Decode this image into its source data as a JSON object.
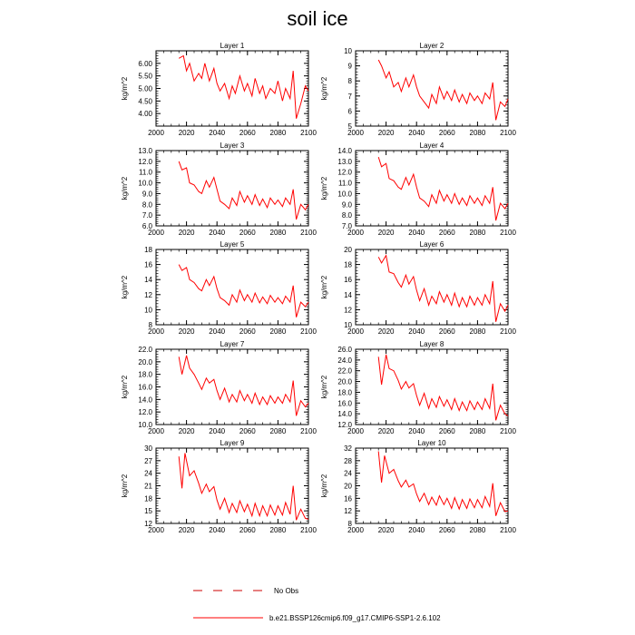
{
  "title": "soil ice",
  "legend": {
    "entries": [
      {
        "label": "No Obs",
        "style": "dashed",
        "color": "#cc0000"
      },
      {
        "label": "b.e21.BSSP126cmip6.f09_g17.CMIP6-SSP1-2.6.102",
        "style": "solid",
        "color": "#ff0000"
      }
    ]
  },
  "chart_data": [
    {
      "type": "line",
      "title": "Layer 1",
      "ylabel": "kg/m^2",
      "xlim": [
        2000,
        2100
      ],
      "ylim": [
        3.5,
        6.5
      ],
      "yticks": [
        "4.00",
        "4.50",
        "5.00",
        "5.50",
        "6.00"
      ],
      "ytick_values": [
        4.0,
        4.5,
        5.0,
        5.5,
        6.0
      ],
      "xticks": [
        "2000",
        "2020",
        "2040",
        "2060",
        "2080",
        "2100"
      ],
      "series": [
        {
          "color": "#ff0000",
          "x": [
            2015,
            2018,
            2020,
            2022,
            2025,
            2028,
            2030,
            2032,
            2035,
            2038,
            2040,
            2042,
            2045,
            2048,
            2050,
            2052,
            2055,
            2058,
            2060,
            2063,
            2065,
            2068,
            2070,
            2072,
            2075,
            2078,
            2080,
            2083,
            2085,
            2088,
            2090,
            2092,
            2095,
            2098,
            2100
          ],
          "y": [
            6.2,
            6.3,
            5.7,
            6.0,
            5.3,
            5.6,
            5.4,
            6.0,
            5.3,
            5.8,
            5.2,
            4.9,
            5.2,
            4.6,
            5.1,
            4.8,
            5.5,
            4.9,
            5.2,
            4.7,
            5.4,
            4.8,
            5.1,
            4.6,
            5.0,
            4.8,
            5.3,
            4.5,
            5.0,
            4.6,
            5.7,
            3.8,
            4.4,
            5.1,
            4.9
          ]
        }
      ]
    },
    {
      "type": "line",
      "title": "Layer 2",
      "ylabel": "kg/m^2",
      "xlim": [
        2000,
        2100
      ],
      "ylim": [
        5,
        10
      ],
      "yticks": [
        "5",
        "6",
        "7",
        "8",
        "9",
        "10"
      ],
      "ytick_values": [
        5,
        6,
        7,
        8,
        9,
        10
      ],
      "xticks": [
        "2000",
        "2020",
        "2040",
        "2060",
        "2080",
        "2100"
      ],
      "series": [
        {
          "color": "#ff0000",
          "x": [
            2015,
            2017,
            2020,
            2022,
            2025,
            2028,
            2030,
            2033,
            2035,
            2038,
            2040,
            2042,
            2045,
            2048,
            2050,
            2053,
            2055,
            2058,
            2060,
            2063,
            2065,
            2068,
            2070,
            2073,
            2075,
            2078,
            2080,
            2083,
            2085,
            2088,
            2090,
            2092,
            2095,
            2098,
            2100
          ],
          "y": [
            9.4,
            9.0,
            8.2,
            8.6,
            7.6,
            7.9,
            7.3,
            8.2,
            7.6,
            8.4,
            7.6,
            7.0,
            6.6,
            6.2,
            7.1,
            6.5,
            7.6,
            6.8,
            7.3,
            6.7,
            7.4,
            6.6,
            7.1,
            6.5,
            7.2,
            6.7,
            7.0,
            6.5,
            7.2,
            6.8,
            7.9,
            5.4,
            6.6,
            6.3,
            6.8
          ]
        }
      ]
    },
    {
      "type": "line",
      "title": "Layer 3",
      "ylabel": "kg/m^2",
      "xlim": [
        2000,
        2100
      ],
      "ylim": [
        6,
        13
      ],
      "yticks": [
        "6.0",
        "7.0",
        "8.0",
        "9.0",
        "10.0",
        "11.0",
        "12.0",
        "13.0"
      ],
      "ytick_values": [
        6,
        7,
        8,
        9,
        10,
        11,
        12,
        13
      ],
      "xticks": [
        "2000",
        "2020",
        "2040",
        "2060",
        "2080",
        "2100"
      ],
      "series": [
        {
          "color": "#ff0000",
          "x": [
            2015,
            2017,
            2020,
            2022,
            2025,
            2028,
            2030,
            2033,
            2035,
            2038,
            2040,
            2042,
            2045,
            2048,
            2050,
            2053,
            2055,
            2058,
            2060,
            2063,
            2065,
            2068,
            2070,
            2073,
            2075,
            2078,
            2080,
            2083,
            2085,
            2088,
            2090,
            2092,
            2095,
            2098,
            2100
          ],
          "y": [
            12.0,
            11.2,
            11.4,
            10.0,
            9.8,
            9.2,
            9.0,
            10.2,
            9.6,
            10.5,
            9.4,
            8.3,
            8.0,
            7.6,
            8.6,
            7.9,
            9.2,
            8.2,
            8.8,
            8.0,
            8.9,
            7.9,
            8.5,
            7.7,
            8.6,
            8.0,
            8.4,
            7.8,
            8.6,
            8.0,
            9.4,
            6.6,
            8.0,
            7.5,
            8.0
          ]
        }
      ]
    },
    {
      "type": "line",
      "title": "Layer 4",
      "ylabel": "kg/m^2",
      "xlim": [
        2000,
        2100
      ],
      "ylim": [
        7,
        14
      ],
      "yticks": [
        "7.0",
        "8.0",
        "9.0",
        "10.0",
        "11.0",
        "12.0",
        "13.0",
        "14.0"
      ],
      "ytick_values": [
        7,
        8,
        9,
        10,
        11,
        12,
        13,
        14
      ],
      "xticks": [
        "2000",
        "2020",
        "2040",
        "2060",
        "2080",
        "2100"
      ],
      "series": [
        {
          "color": "#ff0000",
          "x": [
            2015,
            2017,
            2020,
            2022,
            2025,
            2028,
            2030,
            2033,
            2035,
            2038,
            2040,
            2042,
            2045,
            2048,
            2050,
            2053,
            2055,
            2058,
            2060,
            2063,
            2065,
            2068,
            2070,
            2073,
            2075,
            2078,
            2080,
            2083,
            2085,
            2088,
            2090,
            2092,
            2095,
            2098,
            2100
          ],
          "y": [
            13.4,
            12.5,
            12.8,
            11.4,
            11.2,
            10.6,
            10.4,
            11.5,
            10.8,
            11.8,
            10.6,
            9.6,
            9.3,
            8.8,
            9.9,
            9.1,
            10.3,
            9.3,
            9.9,
            9.1,
            10.0,
            9.0,
            9.6,
            8.9,
            9.8,
            9.1,
            9.6,
            8.9,
            9.8,
            9.1,
            10.6,
            7.5,
            9.1,
            8.6,
            9.1
          ]
        }
      ]
    },
    {
      "type": "line",
      "title": "Layer 5",
      "ylabel": "kg/m^2",
      "xlim": [
        2000,
        2100
      ],
      "ylim": [
        8,
        18
      ],
      "yticks": [
        "8",
        "10",
        "12",
        "14",
        "16",
        "18"
      ],
      "ytick_values": [
        8,
        10,
        12,
        14,
        16,
        18
      ],
      "xticks": [
        "2000",
        "2020",
        "2040",
        "2060",
        "2080",
        "2100"
      ],
      "series": [
        {
          "color": "#ff0000",
          "x": [
            2015,
            2017,
            2020,
            2022,
            2025,
            2028,
            2030,
            2033,
            2035,
            2038,
            2040,
            2042,
            2045,
            2048,
            2050,
            2053,
            2055,
            2058,
            2060,
            2063,
            2065,
            2068,
            2070,
            2073,
            2075,
            2078,
            2080,
            2083,
            2085,
            2088,
            2090,
            2092,
            2095,
            2098,
            2100
          ],
          "y": [
            16.0,
            15.2,
            15.6,
            14.0,
            13.6,
            12.8,
            12.5,
            14.0,
            13.2,
            14.4,
            12.8,
            11.6,
            11.2,
            10.6,
            12.0,
            11.0,
            12.6,
            11.2,
            12.0,
            11.0,
            12.2,
            10.9,
            11.7,
            10.8,
            11.9,
            11.0,
            11.6,
            10.8,
            11.8,
            11.0,
            13.2,
            9.0,
            11.0,
            10.4,
            11.0
          ]
        }
      ]
    },
    {
      "type": "line",
      "title": "Layer 6",
      "ylabel": "kg/m^2",
      "xlim": [
        2000,
        2100
      ],
      "ylim": [
        10,
        20
      ],
      "yticks": [
        "10",
        "12",
        "14",
        "16",
        "18",
        "20"
      ],
      "ytick_values": [
        10,
        12,
        14,
        16,
        18,
        20
      ],
      "xticks": [
        "2000",
        "2020",
        "2040",
        "2060",
        "2080",
        "2100"
      ],
      "series": [
        {
          "color": "#ff0000",
          "x": [
            2015,
            2017,
            2020,
            2022,
            2025,
            2028,
            2030,
            2033,
            2035,
            2038,
            2040,
            2042,
            2045,
            2048,
            2050,
            2053,
            2055,
            2058,
            2060,
            2063,
            2065,
            2068,
            2070,
            2073,
            2075,
            2078,
            2080,
            2083,
            2085,
            2088,
            2090,
            2092,
            2095,
            2098,
            2100
          ],
          "y": [
            19.0,
            18.2,
            19.2,
            17.0,
            16.8,
            15.6,
            15.0,
            16.6,
            15.4,
            16.4,
            14.6,
            13.2,
            14.8,
            12.6,
            13.8,
            12.8,
            14.4,
            13.0,
            14.0,
            12.6,
            14.2,
            12.4,
            13.6,
            12.4,
            13.8,
            12.6,
            13.6,
            12.6,
            14.0,
            12.8,
            15.8,
            10.4,
            12.8,
            11.8,
            12.6
          ]
        }
      ]
    },
    {
      "type": "line",
      "title": "Layer 7",
      "ylabel": "kg/m^2",
      "xlim": [
        2000,
        2100
      ],
      "ylim": [
        10,
        22
      ],
      "yticks": [
        "10.0",
        "12.0",
        "14.0",
        "16.0",
        "18.0",
        "20.0",
        "22.0"
      ],
      "ytick_values": [
        10,
        12,
        14,
        16,
        18,
        20,
        22
      ],
      "xticks": [
        "2000",
        "2020",
        "2040",
        "2060",
        "2080",
        "2100"
      ],
      "series": [
        {
          "color": "#ff0000",
          "x": [
            2015,
            2017,
            2020,
            2022,
            2025,
            2028,
            2030,
            2033,
            2035,
            2038,
            2040,
            2042,
            2045,
            2048,
            2050,
            2053,
            2055,
            2058,
            2060,
            2063,
            2065,
            2068,
            2070,
            2073,
            2075,
            2078,
            2080,
            2083,
            2085,
            2088,
            2090,
            2092,
            2095,
            2098,
            2100
          ],
          "y": [
            20.8,
            18.0,
            21.0,
            19.0,
            18.0,
            16.6,
            15.6,
            17.4,
            16.6,
            17.2,
            15.4,
            14.0,
            15.8,
            13.6,
            14.8,
            13.6,
            15.4,
            13.8,
            14.8,
            13.4,
            15.0,
            13.2,
            14.4,
            13.2,
            14.6,
            13.4,
            14.4,
            13.4,
            14.8,
            13.6,
            17.0,
            11.4,
            13.8,
            12.8,
            13.4
          ]
        }
      ]
    },
    {
      "type": "line",
      "title": "Layer 8",
      "ylabel": "kg/m^2",
      "xlim": [
        2000,
        2100
      ],
      "ylim": [
        12,
        26
      ],
      "yticks": [
        "12.0",
        "14.0",
        "16.0",
        "18.0",
        "20.0",
        "22.0",
        "24.0",
        "26.0"
      ],
      "ytick_values": [
        12,
        14,
        16,
        18,
        20,
        22,
        24,
        26
      ],
      "xticks": [
        "2000",
        "2020",
        "2040",
        "2060",
        "2080",
        "2100"
      ],
      "series": [
        {
          "color": "#ff0000",
          "x": [
            2015,
            2017,
            2020,
            2022,
            2025,
            2028,
            2030,
            2033,
            2035,
            2038,
            2040,
            2042,
            2045,
            2048,
            2050,
            2053,
            2055,
            2058,
            2060,
            2063,
            2065,
            2068,
            2070,
            2073,
            2075,
            2078,
            2080,
            2083,
            2085,
            2088,
            2090,
            2092,
            2095,
            2098,
            2100
          ],
          "y": [
            24.6,
            19.4,
            25.0,
            22.4,
            22.0,
            20.2,
            18.6,
            20.0,
            18.8,
            19.6,
            17.4,
            15.6,
            17.8,
            15.0,
            16.8,
            15.2,
            17.2,
            15.4,
            16.6,
            14.8,
            16.8,
            14.6,
            16.2,
            14.6,
            16.4,
            14.8,
            16.2,
            14.8,
            16.8,
            15.0,
            19.6,
            12.8,
            15.6,
            14.0,
            13.6
          ]
        }
      ]
    },
    {
      "type": "line",
      "title": "Layer 9",
      "ylabel": "kg/m^2",
      "xlim": [
        2000,
        2100
      ],
      "ylim": [
        12,
        30
      ],
      "yticks": [
        "12",
        "15",
        "18",
        "21",
        "24",
        "27",
        "30"
      ],
      "ytick_values": [
        12,
        15,
        18,
        21,
        24,
        27,
        30
      ],
      "xticks": [
        "2000",
        "2020",
        "2040",
        "2060",
        "2080",
        "2100"
      ],
      "series": [
        {
          "color": "#ff0000",
          "x": [
            2015,
            2017,
            2019,
            2022,
            2025,
            2028,
            2030,
            2033,
            2035,
            2038,
            2040,
            2042,
            2045,
            2048,
            2050,
            2053,
            2055,
            2058,
            2060,
            2063,
            2065,
            2068,
            2070,
            2073,
            2075,
            2078,
            2080,
            2083,
            2085,
            2088,
            2090,
            2092,
            2095,
            2098,
            2100
          ],
          "y": [
            28.0,
            20.4,
            28.8,
            23.4,
            24.6,
            21.6,
            19.2,
            21.4,
            19.6,
            20.8,
            17.6,
            15.4,
            18.0,
            14.6,
            16.8,
            14.6,
            17.4,
            14.8,
            16.6,
            13.8,
            16.8,
            13.8,
            16.2,
            13.8,
            16.4,
            14.0,
            16.2,
            14.0,
            17.0,
            14.2,
            21.0,
            12.8,
            15.4,
            13.2,
            13.0
          ]
        }
      ]
    },
    {
      "type": "line",
      "title": "Layer 10",
      "ylabel": "kg/m^2",
      "xlim": [
        2000,
        2100
      ],
      "ylim": [
        8,
        32
      ],
      "yticks": [
        "8",
        "12",
        "16",
        "20",
        "24",
        "28",
        "32"
      ],
      "ytick_values": [
        8,
        12,
        16,
        20,
        24,
        28,
        32
      ],
      "xticks": [
        "2000",
        "2020",
        "2040",
        "2060",
        "2080",
        "2100"
      ],
      "series": [
        {
          "color": "#ff0000",
          "x": [
            2015,
            2017,
            2019,
            2022,
            2025,
            2028,
            2030,
            2033,
            2035,
            2038,
            2040,
            2042,
            2045,
            2048,
            2050,
            2053,
            2055,
            2058,
            2060,
            2063,
            2065,
            2068,
            2070,
            2073,
            2075,
            2078,
            2080,
            2083,
            2085,
            2088,
            2090,
            2092,
            2095,
            2098,
            2100
          ],
          "y": [
            31.0,
            21.0,
            29.6,
            24.0,
            25.2,
            21.6,
            19.6,
            21.8,
            19.6,
            20.6,
            17.4,
            15.0,
            17.6,
            14.0,
            16.4,
            13.8,
            16.8,
            14.0,
            16.0,
            12.8,
            16.2,
            12.6,
            15.6,
            12.8,
            15.8,
            13.0,
            15.6,
            13.0,
            16.6,
            13.4,
            20.8,
            10.4,
            14.6,
            11.8,
            12.0
          ]
        }
      ]
    }
  ]
}
